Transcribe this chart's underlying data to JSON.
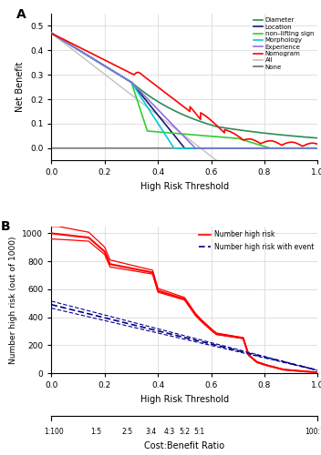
{
  "panel_A": {
    "title": "A",
    "xlabel": "High Risk Threshold",
    "ylabel": "Net Benefit",
    "xlim": [
      0.0,
      1.0
    ],
    "ylim": [
      -0.05,
      0.55
    ],
    "yticks": [
      0.0,
      0.1,
      0.2,
      0.3,
      0.4,
      0.5
    ],
    "xticks": [
      0.0,
      0.2,
      0.4,
      0.6,
      0.8,
      1.0
    ]
  },
  "panel_B": {
    "title": "B",
    "xlabel": "High Risk Threshold",
    "ylabel": "Number high risk (out of 1000)",
    "xlim": [
      0.0,
      1.0
    ],
    "ylim": [
      0,
      1050
    ],
    "yticks": [
      0,
      200,
      400,
      600,
      800,
      1000
    ],
    "xticks": [
      0.0,
      0.2,
      0.4,
      0.6,
      0.8,
      1.0
    ],
    "cb_labels": [
      "1:100",
      "1:5",
      "2:5",
      "3:4",
      "4:3",
      "5:2",
      "5:1",
      "100:1"
    ],
    "cb_positions": [
      0.01,
      0.167,
      0.286,
      0.375,
      0.444,
      0.5,
      0.556,
      0.99
    ]
  },
  "colors": {
    "diameter": "#2E8B57",
    "location": "#191970",
    "nonlifting": "#32CD32",
    "morphology": "#00CED1",
    "experience": "#9370DB",
    "nomogram": "#FF0000",
    "all": "#C0C0C0",
    "none": "#696969",
    "high_risk": "#FF0000",
    "event": "#00008B"
  },
  "background_color": "#FFFFFF",
  "grid_color": "#D3D3D3"
}
